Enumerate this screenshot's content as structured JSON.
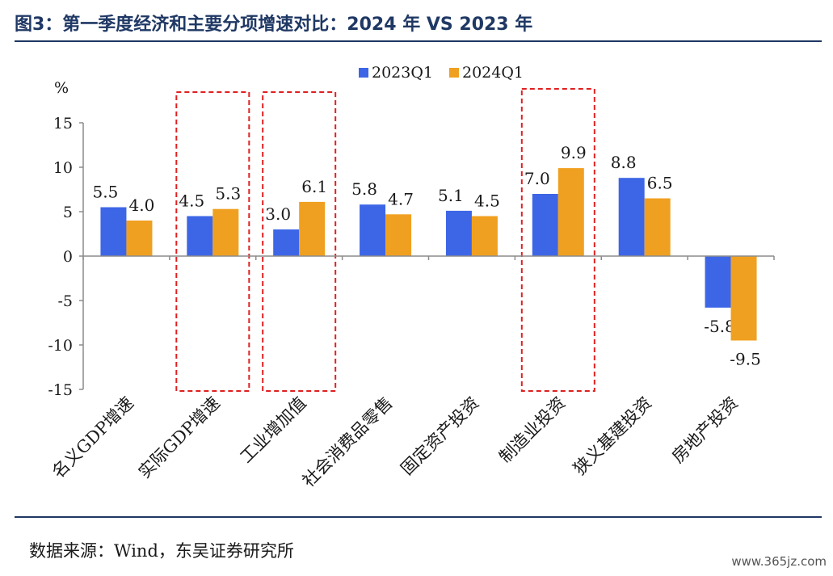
{
  "title": "图3：第一季度经济和主要分项增速对比：2024 年  VS 2023 年",
  "source": "数据来源：Wind，东吴证券研究所",
  "watermark": "www.365jz.com",
  "colors": {
    "series_2023": "#3d66e6",
    "series_2024": "#f0a020",
    "highlight_box": "#e02020",
    "title": "#1f3864"
  },
  "chart_data": {
    "type": "bar",
    "ylabel": "%",
    "ylim": [
      -15,
      15
    ],
    "yticks": [
      15,
      10,
      5,
      0,
      -5,
      -10,
      -15
    ],
    "categories": [
      "名义GDP增速",
      "实际GDP增速",
      "工业增加值",
      "社会消费品零售",
      "固定资产投资",
      "制造业投资",
      "狭义基建投资",
      "房地产投资"
    ],
    "series": [
      {
        "name": "2023Q1",
        "values": [
          5.5,
          4.5,
          3.0,
          5.8,
          5.1,
          7.0,
          8.8,
          -5.8
        ],
        "labels": [
          "5.5",
          "4.5",
          "3.0",
          "5.8",
          "5.1",
          "7.0",
          "8.8",
          "-5.8"
        ]
      },
      {
        "name": "2024Q1",
        "values": [
          4.0,
          5.3,
          6.1,
          4.7,
          4.5,
          9.9,
          6.5,
          -9.5
        ],
        "labels": [
          "4.0",
          "5.3",
          "6.1",
          "4.7",
          "4.5",
          "9.9",
          "6.5",
          "-9.5"
        ]
      }
    ],
    "legend_position": "top-center",
    "highlighted_categories": [
      "实际GDP增速",
      "工业增加值",
      "制造业投资"
    ],
    "grid": false
  }
}
